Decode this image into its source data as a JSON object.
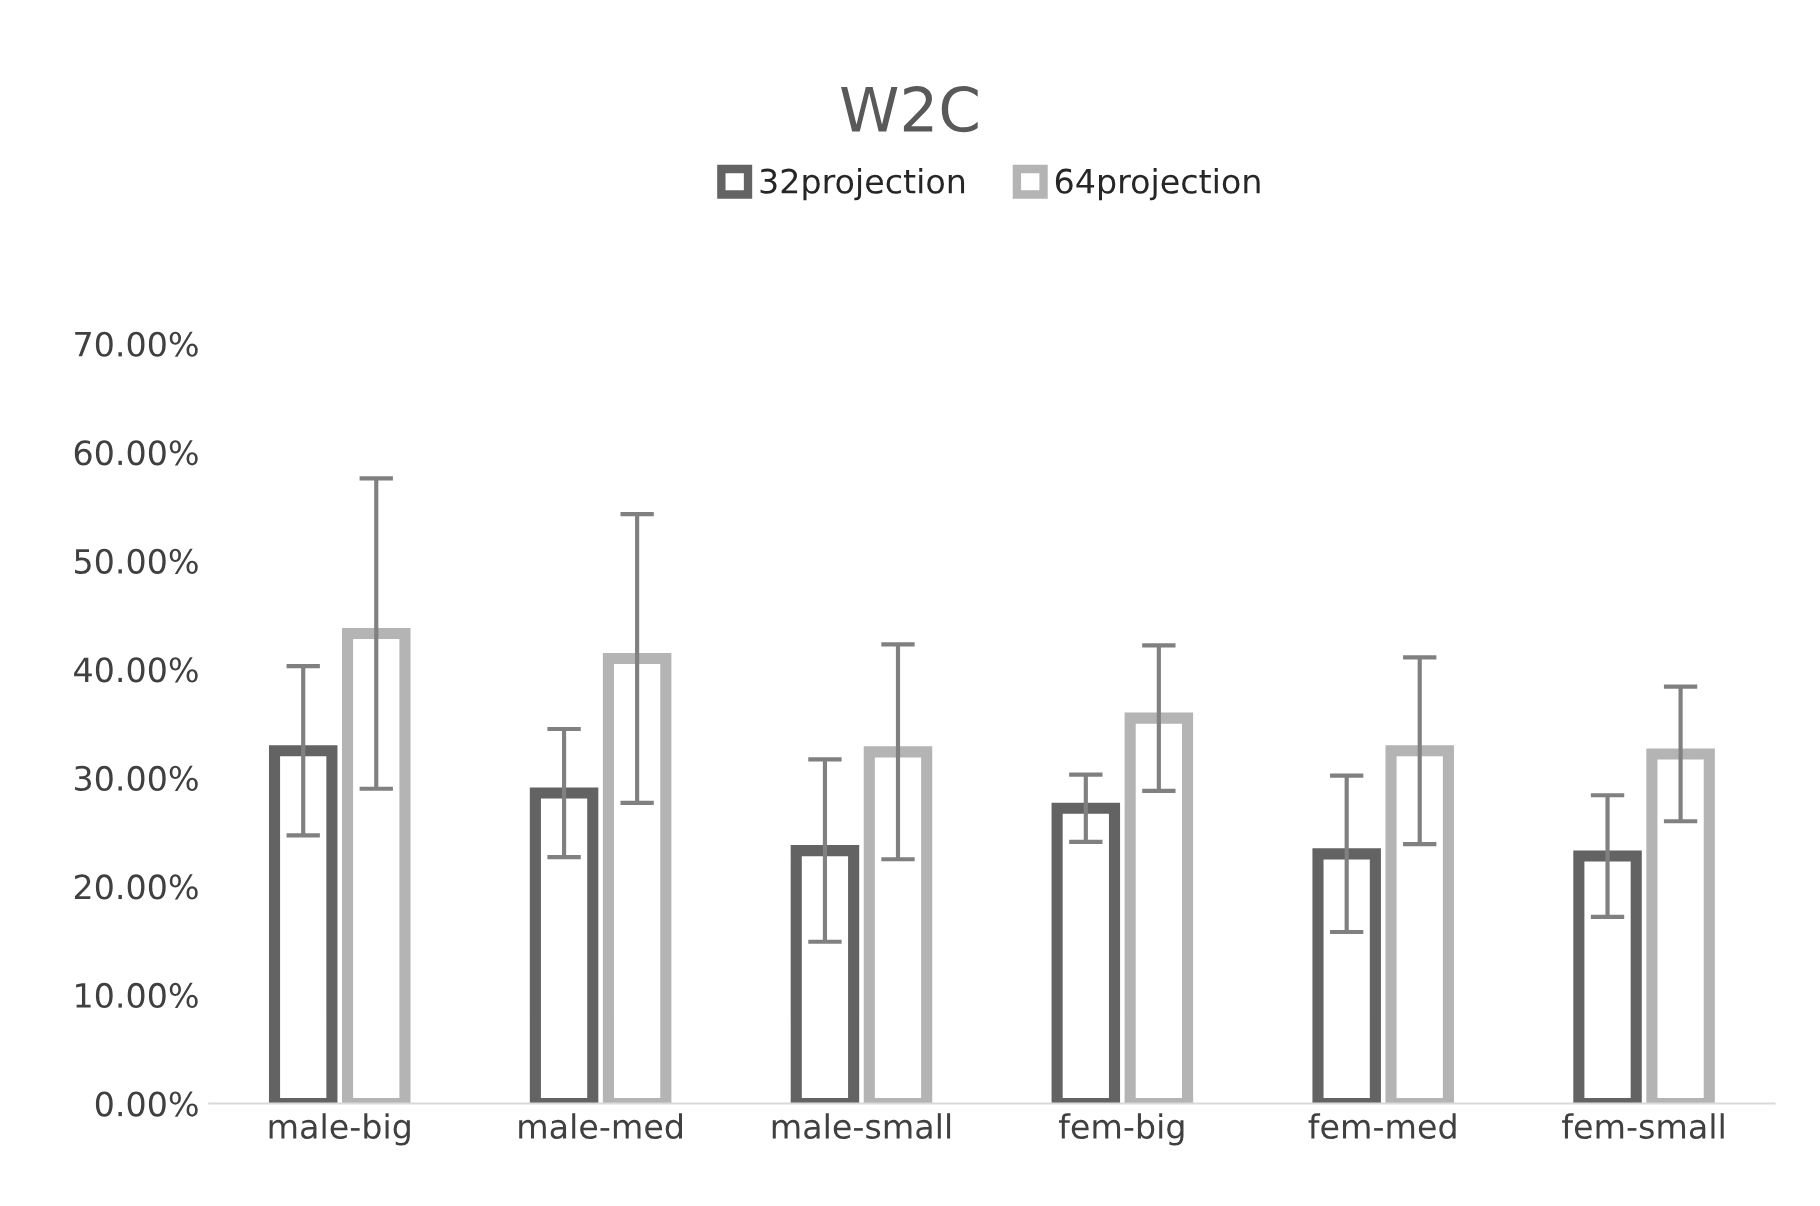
{
  "chart_data": {
    "type": "bar",
    "title": "W2C",
    "categories": [
      "male-big",
      "male-med",
      "male-small",
      "fem-big",
      "fem-med",
      "fem-small"
    ],
    "series": [
      {
        "name": "32projection",
        "color": "#636363",
        "values": [
          32.5,
          28.6,
          23.3,
          27.2,
          23.0,
          22.8
        ],
        "errors": [
          7.8,
          5.9,
          8.4,
          3.1,
          7.2,
          5.6
        ]
      },
      {
        "name": "64projection",
        "color": "#b4b4b4",
        "values": [
          43.3,
          41.0,
          32.4,
          35.5,
          32.5,
          32.2
        ],
        "errors": [
          14.3,
          13.3,
          9.9,
          6.7,
          8.6,
          6.2
        ]
      }
    ],
    "ylim": [
      0,
      70
    ],
    "yticks": [
      {
        "value": 0,
        "label": "0.00%"
      },
      {
        "value": 10,
        "label": "10.00%"
      },
      {
        "value": 20,
        "label": "20.00%"
      },
      {
        "value": 30,
        "label": "30.00%"
      },
      {
        "value": 40,
        "label": "40.00%"
      },
      {
        "value": 50,
        "label": "50.00%"
      },
      {
        "value": 60,
        "label": "60.00%"
      },
      {
        "value": 70,
        "label": "70.00%"
      }
    ],
    "grid": false,
    "legend": "top"
  }
}
